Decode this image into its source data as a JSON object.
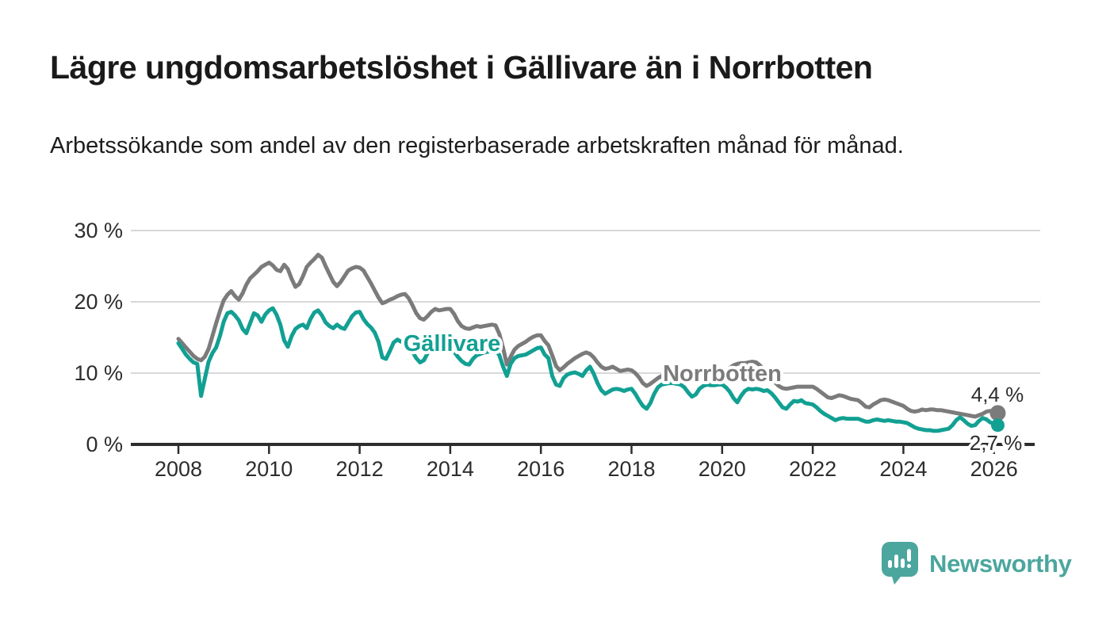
{
  "title": "Lägre ungdomsarbetslöshet i Gällivare än i Norrbotten",
  "subtitle": "Arbetssökande som andel av den registerbaserade arbetskraften månad för månad.",
  "footer": {
    "brand": "Newsworthy"
  },
  "colors": {
    "gallivare": "#12a093",
    "norrbotten": "#7b7b7b",
    "brand_teal": "#4ba69e",
    "axis": "#2d2d2d",
    "gridline": "#d8d8d8",
    "value_label": "#2d2d2d"
  },
  "chart_data": {
    "type": "line",
    "unit": "%",
    "title": "Lägre ungdomsarbetslöshet i Gällivare än i Norrbotten",
    "subtitle": "Arbetssökande som andel av den registerbaserade arbetskraften månad för månad.",
    "x_start_year": 2008,
    "points_per_year": 12,
    "x_ticks": [
      2008,
      2010,
      2012,
      2014,
      2016,
      2018,
      2020,
      2022,
      2024,
      2026
    ],
    "ylim": [
      0,
      30
    ],
    "grid": true,
    "y_ticks": [
      {
        "value": 30,
        "label": "30 %"
      },
      {
        "value": 20,
        "label": "20 %"
      },
      {
        "value": 10,
        "label": "10 %"
      },
      {
        "value": 0,
        "label": "0 %"
      }
    ],
    "series": [
      {
        "name": "Norrbotten",
        "color": "#7b7b7b",
        "end_label": "4,4 %",
        "end_value": 4.4,
        "values": [
          14.8,
          14.2,
          13.6,
          13.0,
          12.4,
          12.0,
          11.8,
          12.3,
          13.4,
          15.2,
          17.0,
          18.7,
          20.2,
          21.0,
          21.5,
          20.8,
          20.3,
          21.2,
          22.4,
          23.3,
          23.8,
          24.3,
          24.9,
          25.2,
          25.5,
          25.1,
          24.5,
          24.3,
          25.2,
          24.6,
          23.2,
          22.1,
          22.5,
          23.6,
          24.9,
          25.5,
          26.0,
          26.6,
          26.2,
          25.0,
          23.9,
          22.8,
          22.2,
          22.8,
          23.6,
          24.4,
          24.7,
          24.9,
          24.8,
          24.4,
          23.5,
          22.6,
          21.6,
          20.6,
          19.8,
          20.0,
          20.3,
          20.5,
          20.8,
          21.0,
          21.1,
          20.5,
          19.5,
          18.4,
          17.7,
          17.5,
          18.0,
          18.6,
          19.0,
          18.8,
          18.9,
          19.0,
          19.0,
          18.3,
          17.3,
          16.6,
          16.3,
          16.2,
          16.4,
          16.6,
          16.5,
          16.6,
          16.7,
          16.8,
          16.7,
          15.5,
          13.5,
          11.2,
          12.3,
          13.3,
          13.8,
          14.1,
          14.4,
          14.8,
          15.1,
          15.3,
          15.3,
          14.5,
          13.9,
          12.5,
          11.0,
          10.4,
          10.8,
          11.3,
          11.7,
          12.1,
          12.4,
          12.7,
          12.9,
          12.7,
          12.2,
          11.5,
          10.9,
          10.6,
          10.7,
          10.9,
          10.6,
          10.3,
          10.4,
          10.5,
          10.4,
          10.0,
          9.4,
          8.6,
          8.2,
          8.5,
          8.9,
          9.3,
          9.6,
          9.8,
          10.0,
          10.1,
          10.1,
          10.0,
          9.8,
          9.6,
          9.5,
          9.6,
          9.7,
          9.9,
          10.0,
          10.0,
          10.0,
          10.0,
          10.1,
          10.3,
          10.7,
          11.1,
          11.3,
          11.4,
          11.4,
          11.5,
          11.6,
          11.5,
          11.1,
          10.5,
          9.9,
          9.3,
          8.7,
          8.2,
          7.9,
          7.8,
          7.9,
          8.0,
          8.1,
          8.1,
          8.1,
          8.1,
          8.1,
          7.8,
          7.4,
          7.0,
          6.6,
          6.5,
          6.7,
          6.9,
          6.8,
          6.6,
          6.4,
          6.3,
          6.2,
          5.8,
          5.3,
          5.2,
          5.6,
          5.9,
          6.2,
          6.3,
          6.2,
          6.0,
          5.8,
          5.6,
          5.4,
          5.0,
          4.7,
          4.6,
          4.7,
          4.9,
          4.8,
          4.9,
          4.9,
          4.8,
          4.8,
          4.7,
          4.6,
          4.5,
          4.4,
          4.3,
          4.2,
          4.1,
          4.0,
          3.9,
          4.1,
          4.3,
          4.6,
          4.7,
          4.6,
          4.4
        ]
      },
      {
        "name": "Gällivare",
        "color": "#12a093",
        "end_label": "2,7 %",
        "end_value": 2.7,
        "values": [
          14.2,
          13.4,
          12.6,
          12.0,
          11.5,
          11.3,
          6.8,
          9.2,
          11.6,
          12.8,
          13.6,
          15.2,
          17.2,
          18.4,
          18.6,
          18.1,
          17.4,
          16.2,
          15.6,
          17.0,
          18.4,
          18.1,
          17.2,
          18.2,
          18.8,
          19.1,
          18.2,
          16.8,
          14.6,
          13.7,
          15.2,
          16.2,
          16.6,
          16.8,
          16.3,
          17.6,
          18.5,
          18.8,
          18.1,
          17.1,
          16.6,
          16.3,
          16.8,
          16.4,
          16.2,
          17.1,
          18.0,
          18.5,
          18.6,
          17.6,
          16.9,
          16.4,
          15.7,
          14.4,
          12.2,
          12.0,
          13.1,
          14.3,
          14.7,
          14.4,
          14.3,
          13.8,
          13.0,
          12.1,
          11.5,
          11.8,
          12.8,
          13.5,
          13.8,
          13.4,
          13.6,
          13.7,
          13.6,
          13.0,
          12.3,
          11.7,
          11.3,
          11.2,
          12.0,
          12.5,
          12.7,
          12.9,
          13.0,
          13.2,
          13.3,
          12.5,
          10.9,
          9.6,
          11.3,
          12.1,
          12.4,
          12.5,
          12.6,
          12.9,
          13.2,
          13.5,
          13.6,
          12.6,
          12.1,
          9.6,
          8.4,
          8.2,
          9.3,
          9.8,
          10.0,
          10.1,
          9.9,
          9.6,
          10.4,
          10.9,
          9.9,
          8.6,
          7.6,
          7.1,
          7.4,
          7.7,
          7.8,
          7.7,
          7.5,
          7.7,
          7.8,
          7.1,
          6.2,
          5.4,
          5.0,
          5.8,
          7.1,
          8.0,
          8.4,
          8.5,
          8.6,
          8.6,
          8.5,
          8.4,
          8.0,
          7.3,
          6.7,
          7.0,
          7.8,
          8.2,
          8.4,
          8.3,
          8.3,
          8.4,
          8.4,
          8.0,
          7.4,
          6.5,
          5.9,
          6.8,
          7.5,
          7.8,
          7.7,
          7.8,
          7.7,
          7.5,
          7.6,
          7.2,
          6.6,
          5.9,
          5.2,
          5.0,
          5.6,
          6.1,
          6.0,
          6.2,
          5.8,
          5.7,
          5.6,
          5.2,
          4.7,
          4.3,
          4.0,
          3.7,
          3.4,
          3.6,
          3.7,
          3.6,
          3.6,
          3.6,
          3.6,
          3.4,
          3.2,
          3.2,
          3.4,
          3.5,
          3.4,
          3.3,
          3.4,
          3.3,
          3.2,
          3.2,
          3.1,
          3.0,
          2.7,
          2.4,
          2.2,
          2.1,
          2.0,
          2.0,
          1.9,
          1.9,
          2.0,
          2.1,
          2.2,
          2.7,
          3.4,
          3.8,
          3.4,
          2.9,
          2.6,
          2.7,
          3.3,
          3.7,
          3.5,
          3.1,
          2.9,
          2.7
        ]
      }
    ]
  }
}
